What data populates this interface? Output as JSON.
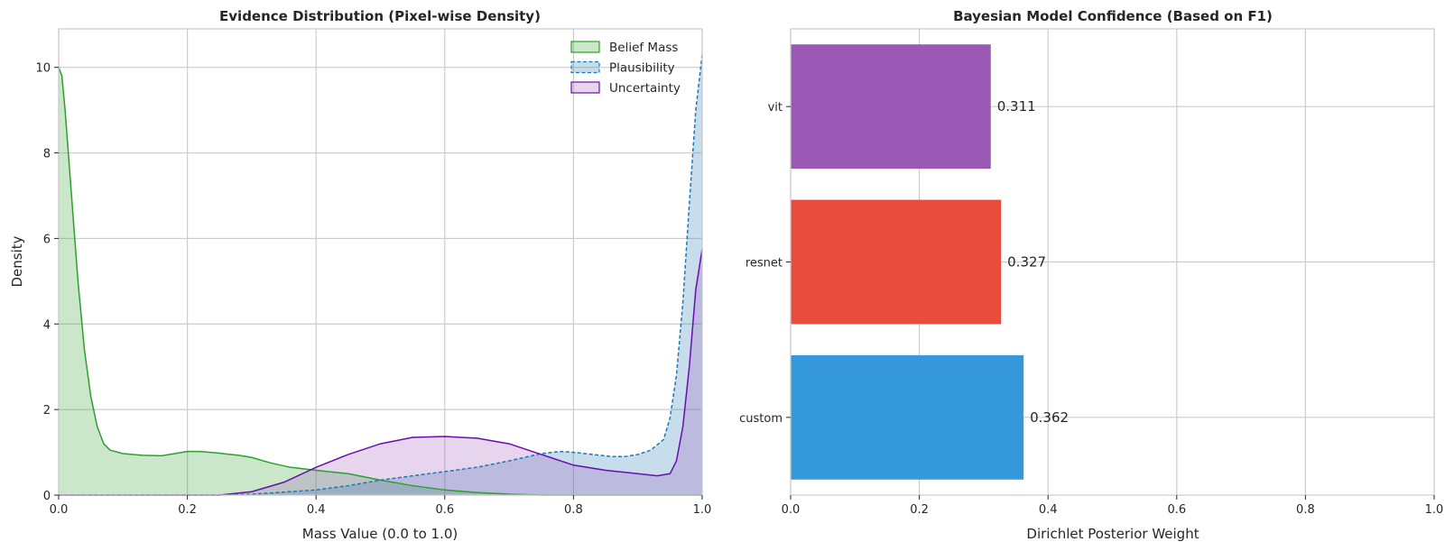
{
  "chart_data": [
    {
      "type": "area",
      "title": "Evidence Distribution (Pixel-wise Density)",
      "xlabel": "Mass Value (0.0 to 1.0)",
      "ylabel": "Density",
      "xlim": [
        0,
        1
      ],
      "ylim": [
        0,
        10.9
      ],
      "xticks": [
        0.0,
        0.2,
        0.4,
        0.6,
        0.8,
        1.0
      ],
      "xtick_labels": [
        "0.0",
        "0.2",
        "0.4",
        "0.6",
        "0.8",
        "1.0"
      ],
      "yticks": [
        0,
        2,
        4,
        6,
        8,
        10
      ],
      "ytick_labels": [
        "0",
        "2",
        "4",
        "6",
        "8",
        "10"
      ],
      "grid": true,
      "legend_position": "top-right",
      "series": [
        {
          "name": "Belief Mass",
          "line_color": "#2ca02c",
          "fill_color": "#2ca02c",
          "line_style": "solid",
          "points": [
            [
              0.0,
              10.0
            ],
            [
              0.005,
              9.8
            ],
            [
              0.01,
              9.0
            ],
            [
              0.02,
              7.0
            ],
            [
              0.03,
              5.0
            ],
            [
              0.04,
              3.4
            ],
            [
              0.05,
              2.3
            ],
            [
              0.06,
              1.6
            ],
            [
              0.07,
              1.2
            ],
            [
              0.08,
              1.05
            ],
            [
              0.1,
              0.97
            ],
            [
              0.13,
              0.93
            ],
            [
              0.16,
              0.92
            ],
            [
              0.18,
              0.97
            ],
            [
              0.2,
              1.02
            ],
            [
              0.22,
              1.02
            ],
            [
              0.25,
              0.98
            ],
            [
              0.28,
              0.93
            ],
            [
              0.3,
              0.88
            ],
            [
              0.33,
              0.75
            ],
            [
              0.36,
              0.65
            ],
            [
              0.4,
              0.58
            ],
            [
              0.45,
              0.5
            ],
            [
              0.5,
              0.35
            ],
            [
              0.55,
              0.22
            ],
            [
              0.6,
              0.12
            ],
            [
              0.65,
              0.06
            ],
            [
              0.7,
              0.02
            ],
            [
              0.75,
              0.0
            ],
            [
              1.0,
              0.0
            ]
          ]
        },
        {
          "name": "Plausibility",
          "line_color": "#1f77b4",
          "fill_color": "#1f77b4",
          "line_style": "dashed",
          "points": [
            [
              0.0,
              0.0
            ],
            [
              0.25,
              0.0
            ],
            [
              0.3,
              0.02
            ],
            [
              0.35,
              0.07
            ],
            [
              0.4,
              0.12
            ],
            [
              0.45,
              0.22
            ],
            [
              0.5,
              0.35
            ],
            [
              0.55,
              0.45
            ],
            [
              0.6,
              0.55
            ],
            [
              0.65,
              0.65
            ],
            [
              0.7,
              0.8
            ],
            [
              0.75,
              0.97
            ],
            [
              0.78,
              1.02
            ],
            [
              0.8,
              1.0
            ],
            [
              0.83,
              0.95
            ],
            [
              0.86,
              0.9
            ],
            [
              0.88,
              0.9
            ],
            [
              0.9,
              0.95
            ],
            [
              0.92,
              1.05
            ],
            [
              0.94,
              1.3
            ],
            [
              0.95,
              1.8
            ],
            [
              0.96,
              2.8
            ],
            [
              0.97,
              4.5
            ],
            [
              0.98,
              6.8
            ],
            [
              0.99,
              9.0
            ],
            [
              1.0,
              10.3
            ]
          ]
        },
        {
          "name": "Uncertainty",
          "line_color": "#6a0dad",
          "fill_color": "#9b59b6",
          "line_style": "solid",
          "points": [
            [
              0.0,
              0.0
            ],
            [
              0.25,
              0.0
            ],
            [
              0.3,
              0.08
            ],
            [
              0.35,
              0.3
            ],
            [
              0.4,
              0.65
            ],
            [
              0.45,
              0.95
            ],
            [
              0.5,
              1.2
            ],
            [
              0.55,
              1.35
            ],
            [
              0.6,
              1.37
            ],
            [
              0.65,
              1.33
            ],
            [
              0.7,
              1.2
            ],
            [
              0.75,
              0.95
            ],
            [
              0.8,
              0.7
            ],
            [
              0.85,
              0.58
            ],
            [
              0.9,
              0.5
            ],
            [
              0.93,
              0.45
            ],
            [
              0.95,
              0.5
            ],
            [
              0.96,
              0.8
            ],
            [
              0.97,
              1.6
            ],
            [
              0.98,
              3.0
            ],
            [
              0.99,
              4.8
            ],
            [
              1.0,
              5.75
            ]
          ]
        }
      ]
    },
    {
      "type": "bar",
      "orientation": "horizontal",
      "title": "Bayesian Model Confidence (Based on F1)",
      "xlabel": "Dirichlet Posterior Weight",
      "ylabel": "",
      "xlim": [
        0,
        1
      ],
      "xticks": [
        0.0,
        0.2,
        0.4,
        0.6,
        0.8,
        1.0
      ],
      "xtick_labels": [
        "0.0",
        "0.2",
        "0.4",
        "0.6",
        "0.8",
        "1.0"
      ],
      "grid": true,
      "categories": [
        "custom",
        "resnet",
        "vit"
      ],
      "values": [
        0.362,
        0.327,
        0.311
      ],
      "value_labels": [
        "0.362",
        "0.327",
        "0.311"
      ],
      "colors": [
        "#3498db",
        "#e74c3c",
        "#9b59b6"
      ]
    }
  ],
  "colors": {
    "grid": "#cccccc",
    "spine": "#cccccc",
    "text": "#262626"
  }
}
